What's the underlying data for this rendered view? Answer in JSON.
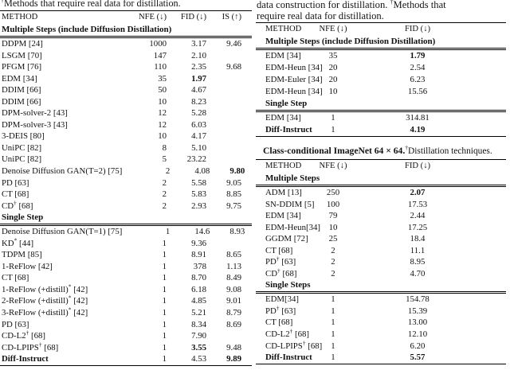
{
  "left": {
    "caption": {
      "sup": "†",
      "text": "Methods that require real data for distillation."
    },
    "table": {
      "columns": {
        "method": "METHOD",
        "nfe": "NFE (↓)",
        "fid": "FID (↓)",
        "is": "IS (↑)"
      },
      "sections": [
        {
          "title": "Multiple Steps (include Diffusion Distillation)",
          "rows": [
            {
              "method": "DDPM [24]",
              "nfe": "1000",
              "fid": "3.17",
              "is": "9.46",
              "bold": []
            },
            {
              "method": "LSGM [70]",
              "nfe": "147",
              "fid": "2.10",
              "is": "",
              "bold": []
            },
            {
              "method": "PFGM [76]",
              "nfe": "110",
              "fid": "2.35",
              "is": "9.68",
              "bold": []
            },
            {
              "method": "EDM [34]",
              "nfe": "35",
              "fid": "1.97",
              "is": "",
              "bold": [
                "fid"
              ]
            },
            {
              "method": "DDIM [66]",
              "nfe": "50",
              "fid": "4.67",
              "is": "",
              "bold": []
            },
            {
              "method": "DDIM [66]",
              "nfe": "10",
              "fid": "8.23",
              "is": "",
              "bold": []
            },
            {
              "method": "DPM-solver-2 [43]",
              "nfe": "12",
              "fid": "5.28",
              "is": "",
              "bold": []
            },
            {
              "method": "DPM-solver-3 [43]",
              "nfe": "12",
              "fid": "6.03",
              "is": "",
              "bold": []
            },
            {
              "method": "3-DEIS [80]",
              "nfe": "10",
              "fid": "4.17",
              "is": "",
              "bold": []
            },
            {
              "method": "UniPC [82]",
              "nfe": "8",
              "fid": "5.10",
              "is": "",
              "bold": []
            },
            {
              "method": "UniPC [82]",
              "nfe": "5",
              "fid": "23.22",
              "is": "",
              "bold": []
            },
            {
              "method": "Denoise Diffusion GAN(T=2) [75]",
              "nfe": "2",
              "fid": "4.08",
              "is": "9.80",
              "bold": [
                "is"
              ]
            },
            {
              "method": "PD [63]",
              "nfe": "2",
              "fid": "5.58",
              "is": "9.05",
              "bold": []
            },
            {
              "method": "CT [68]",
              "nfe": "2",
              "fid": "5.83",
              "is": "8.85",
              "bold": []
            },
            {
              "method": "CD† [68]",
              "nfe": "2",
              "fid": "2.93",
              "is": "9.75",
              "bold": []
            }
          ]
        },
        {
          "title": "Single Step",
          "rows": [
            {
              "method": "Denoise Diffusion GAN(T=1) [75]",
              "nfe": "1",
              "fid": "14.6",
              "is": "8.93",
              "bold": []
            },
            {
              "method": "KD* [44]",
              "nfe": "1",
              "fid": "9.36",
              "is": "",
              "bold": []
            },
            {
              "method": "TDPM [85]",
              "nfe": "1",
              "fid": "8.91",
              "is": "8.65",
              "bold": []
            },
            {
              "method": "1-ReFlow [42]",
              "nfe": "1",
              "fid": "378",
              "is": "1.13",
              "bold": []
            },
            {
              "method": "CT [68]",
              "nfe": "1",
              "fid": "8.70",
              "is": "8.49",
              "bold": []
            },
            {
              "method": "1-ReFlow (+distill)* [42]",
              "nfe": "1",
              "fid": "6.18",
              "is": "9.08",
              "bold": []
            },
            {
              "method": "2-ReFlow (+distill)* [42]",
              "nfe": "1",
              "fid": "4.85",
              "is": "9.01",
              "bold": []
            },
            {
              "method": "3-ReFlow (+distill)* [42]",
              "nfe": "1",
              "fid": "5.21",
              "is": "8.79",
              "bold": []
            },
            {
              "method": "PD [63]",
              "nfe": "1",
              "fid": "8.34",
              "is": "8.69",
              "bold": []
            },
            {
              "method": "CD-L2† [68]",
              "nfe": "1",
              "fid": "7.90",
              "is": "",
              "bold": []
            },
            {
              "method": "CD-LPIPS† [68]",
              "nfe": "1",
              "fid": "3.55",
              "is": "9.48",
              "bold": [
                "fid"
              ]
            },
            {
              "method": "Diff-Instruct",
              "nfe": "1",
              "fid": "4.53",
              "is": "9.89",
              "bold": [
                "method",
                "is"
              ]
            }
          ]
        }
      ]
    }
  },
  "right": {
    "caption_lines": [
      "data construction for distillation. †Methods that",
      "require real data for distillation."
    ],
    "table1": {
      "columns": {
        "method": "METHOD",
        "nfe": "NFE (↓)",
        "fid": "FID (↓)"
      },
      "sections": [
        {
          "title": "Multiple Steps (include Diffusion Distillation)",
          "rows": [
            {
              "method": "EDM [34]",
              "nfe": "35",
              "fid": "1.79",
              "bold": [
                "fid"
              ]
            },
            {
              "method": "EDM-Heun [34]",
              "nfe": "20",
              "fid": "2.54",
              "bold": []
            },
            {
              "method": "EDM-Euler [34]",
              "nfe": "20",
              "fid": "6.23",
              "bold": []
            },
            {
              "method": "EDM-Heun [34]",
              "nfe": "10",
              "fid": "15.56",
              "bold": []
            }
          ]
        },
        {
          "title": "Single Step",
          "rows": [
            {
              "method": "EDM [34]",
              "nfe": "1",
              "fid": "314.81",
              "bold": []
            },
            {
              "method": "Diff-Instruct",
              "nfe": "1",
              "fid": "4.19",
              "bold": [
                "method",
                "fid"
              ]
            }
          ]
        }
      ]
    },
    "caption2": {
      "bold": "Class-conditional ImageNet 64 × 64.",
      "sup": "†",
      "normal": "Distillation techniques."
    },
    "table2": {
      "columns": {
        "method": "METHOD",
        "nfe": "NFE (↓)",
        "fid": "FID (↓)"
      },
      "sections": [
        {
          "title": "Multiple Steps",
          "rows": [
            {
              "method": "ADM [13]",
              "nfe": "250",
              "fid": "2.07",
              "bold": [
                "fid"
              ]
            },
            {
              "method": "SN-DDIM [5]",
              "nfe": "100",
              "fid": "17.53",
              "bold": []
            },
            {
              "method": "EDM [34]",
              "nfe": "79",
              "fid": "2.44",
              "bold": []
            },
            {
              "method": "EDM-Heun[34]",
              "nfe": "10",
              "fid": "17.25",
              "bold": []
            },
            {
              "method": "GGDM [72]",
              "nfe": "25",
              "fid": "18.4",
              "bold": []
            },
            {
              "method": "CT [68]",
              "nfe": "2",
              "fid": "11.1",
              "bold": []
            },
            {
              "method": "PD† [63]",
              "nfe": "2",
              "fid": "8.95",
              "bold": []
            },
            {
              "method": "CD† [68]",
              "nfe": "2",
              "fid": "4.70",
              "bold": []
            }
          ]
        },
        {
          "title": "Single Steps",
          "rows": [
            {
              "method": "EDM[34]",
              "nfe": "1",
              "fid": "154.78",
              "bold": []
            },
            {
              "method": "PD† [63]",
              "nfe": "1",
              "fid": "15.39",
              "bold": []
            },
            {
              "method": "CT [68]",
              "nfe": "1",
              "fid": "13.00",
              "bold": []
            },
            {
              "method": "CD-L2† [68]",
              "nfe": "1",
              "fid": "12.10",
              "bold": []
            },
            {
              "method": "CD-LPIPS† [68]",
              "nfe": "1",
              "fid": "6.20",
              "bold": []
            },
            {
              "method": "Diff-Instruct",
              "nfe": "1",
              "fid": "5.57",
              "bold": [
                "method",
                "fid"
              ]
            }
          ]
        }
      ]
    }
  }
}
